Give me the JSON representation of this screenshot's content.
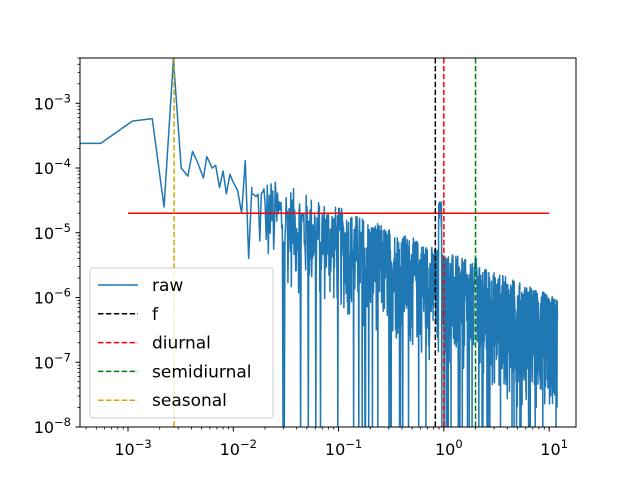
{
  "chart_data": {
    "type": "line",
    "title": "",
    "xlabel": "",
    "ylabel": "",
    "xscale": "log",
    "yscale": "log",
    "xlim": [
      0.00035,
      18
    ],
    "ylim": [
      1e-08,
      0.005
    ],
    "grid": false,
    "legend_position": "lower-left",
    "x_ticks": [
      {
        "value": 0.001,
        "base": "10",
        "exp": "−3"
      },
      {
        "value": 0.01,
        "base": "10",
        "exp": "−2"
      },
      {
        "value": 0.1,
        "base": "10",
        "exp": "−1"
      },
      {
        "value": 1,
        "base": "10",
        "exp": "0"
      },
      {
        "value": 10,
        "base": "10",
        "exp": "1"
      }
    ],
    "y_ticks": [
      {
        "value": 1e-08,
        "base": "10",
        "exp": "−8"
      },
      {
        "value": 1e-07,
        "base": "10",
        "exp": "−7"
      },
      {
        "value": 1e-06,
        "base": "10",
        "exp": "−6"
      },
      {
        "value": 1e-05,
        "base": "10",
        "exp": "−5"
      },
      {
        "value": 0.0001,
        "base": "10",
        "exp": "−4"
      },
      {
        "value": 0.001,
        "base": "10",
        "exp": "−3"
      }
    ],
    "series": [
      {
        "name": "raw",
        "color": "#1f77b4",
        "style": "solid",
        "points": [
          [
            0.00035,
            0.00024
          ],
          [
            0.00055,
            0.00024
          ],
          [
            0.0011,
            0.00053
          ],
          [
            0.0017,
            0.00058
          ],
          [
            0.0022,
            2.5e-05
          ],
          [
            0.0027,
            0.0048
          ],
          [
            0.0032,
            0.0001
          ],
          [
            0.0037,
            7.5e-05
          ],
          [
            0.0041,
            0.00018
          ],
          [
            0.0046,
            0.00012
          ],
          [
            0.0052,
            7e-05
          ],
          [
            0.0056,
            0.00015
          ],
          [
            0.0063,
            0.0001
          ],
          [
            0.0068,
            0.00011
          ],
          [
            0.0074,
            5e-05
          ],
          [
            0.008,
            9e-05
          ],
          [
            0.0086,
            4e-05
          ],
          [
            0.0093,
            8e-05
          ],
          [
            0.01,
            6e-05
          ],
          [
            0.011,
            4.5e-05
          ],
          [
            0.012,
            2e-05
          ],
          [
            0.013,
            0.00013
          ],
          [
            0.014,
            4e-06
          ],
          [
            0.015,
            5e-05
          ]
        ],
        "noise_band": {
          "f_start": 0.015,
          "f_end": 12,
          "upper_at_start": 9e-05,
          "upper_at_end": 1e-06,
          "lower_at_start": 2e-06,
          "lower_at_end": 1e-08,
          "spikes": [
            {
              "x": 0.0027,
              "y": 0.0048
            },
            {
              "x": 0.92,
              "y": 3e-05
            },
            {
              "x": 2.0,
              "y": 4e-06
            }
          ]
        }
      },
      {
        "name": "f",
        "color": "#000000",
        "style": "dashed",
        "vertical_x": 0.83,
        "y_range": [
          1e-08,
          0.005
        ]
      },
      {
        "name": "diurnal",
        "color": "#ff0000",
        "style": "dashed",
        "vertical_x": 1.0,
        "y_range": [
          1e-08,
          0.005
        ]
      },
      {
        "name": "semidiurnal",
        "color": "#008000",
        "style": "dashed",
        "vertical_x": 2.0,
        "y_range": [
          1e-08,
          0.005
        ]
      },
      {
        "name": "seasonal",
        "color": "#ccaa00",
        "style": "dashed",
        "vertical_x": 0.00274,
        "y_range": [
          1e-08,
          0.005
        ]
      }
    ],
    "hline": {
      "color": "#ff0000",
      "style": "solid",
      "y": 2e-05,
      "x_range": [
        0.001,
        10
      ]
    },
    "legend": [
      {
        "label": "raw",
        "color": "#1f77b4",
        "style": "solid"
      },
      {
        "label": "f",
        "color": "#000000",
        "style": "dashed"
      },
      {
        "label": "diurnal",
        "color": "#ff0000",
        "style": "dashed"
      },
      {
        "label": "semidiurnal",
        "color": "#008000",
        "style": "dashed"
      },
      {
        "label": "seasonal",
        "color": "#ccaa00",
        "style": "dashed"
      }
    ]
  }
}
